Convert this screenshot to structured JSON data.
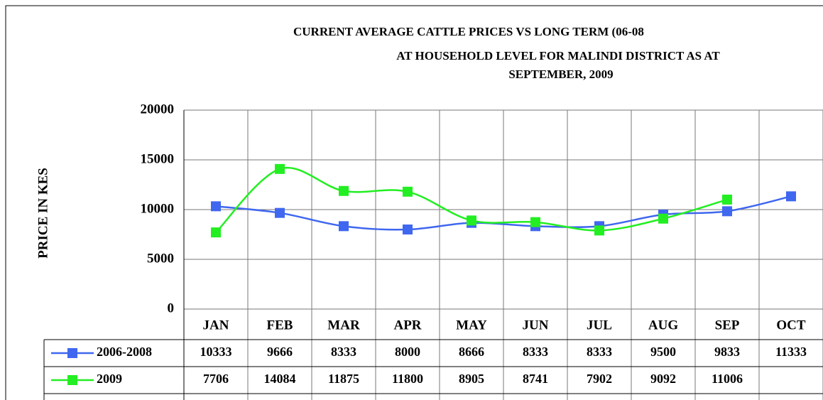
{
  "chart_data": {
    "type": "line",
    "title": [
      "CURRENT AVERAGE CATTLE PRICES VS LONG TERM (06-08",
      "AT HOUSEHOLD LEVEL FOR MALINDI DISTRICT AS AT",
      "SEPTEMBER,  2009"
    ],
    "y_label": "PRICE IN KES",
    "categories": [
      "JAN",
      "FEB",
      "MAR",
      "APR",
      "MAY",
      "JUN",
      "JUL",
      "AUG",
      "SEP",
      "OCT"
    ],
    "series": [
      {
        "name": "2006-2008",
        "color": "#3f67ef",
        "values": [
          10333,
          9666,
          8333,
          8000,
          8666,
          8333,
          8333,
          9500,
          9833,
          11333
        ]
      },
      {
        "name": "2009",
        "color": "#22ee22",
        "values": [
          7706,
          14084,
          11875,
          11800,
          8905,
          8741,
          7902,
          9092,
          11006,
          null
        ]
      }
    ],
    "ylim": [
      0,
      20000
    ],
    "yticks": [
      0,
      5000,
      10000,
      15000,
      20000
    ],
    "grid": true,
    "smooth": true
  }
}
